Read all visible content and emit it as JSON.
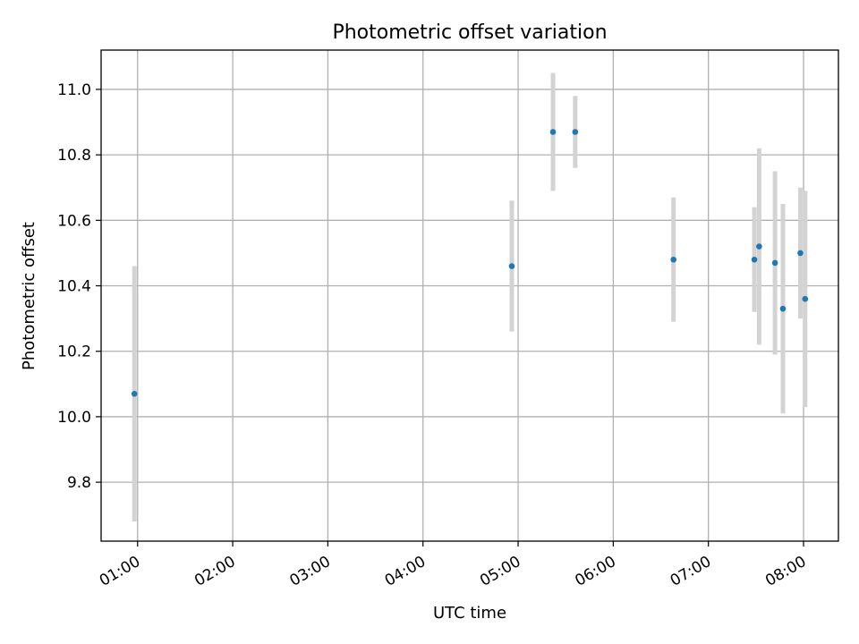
{
  "chart_data": {
    "type": "scatter",
    "title": "Photometric offset variation",
    "xlabel": "UTC time",
    "ylabel": "Photometric offset",
    "x_ticks": [
      "01:00",
      "02:00",
      "03:00",
      "04:00",
      "05:00",
      "06:00",
      "07:00",
      "08:00"
    ],
    "y_ticks": [
      "9.8",
      "10.0",
      "10.2",
      "10.4",
      "10.6",
      "10.8",
      "11.0"
    ],
    "xlim": [
      "00:37",
      "08:22"
    ],
    "ylim": [
      9.62,
      11.12
    ],
    "grid": true,
    "marker_color": "#1f77b4",
    "errorbar_color": "#d3d3d3",
    "series": [
      {
        "points": [
          {
            "x": "00:58",
            "y": 10.07,
            "err": 0.39
          },
          {
            "x": "04:56",
            "y": 10.46,
            "err": 0.2
          },
          {
            "x": "05:22",
            "y": 10.87,
            "err": 0.18
          },
          {
            "x": "05:36",
            "y": 10.87,
            "err": 0.11
          },
          {
            "x": "06:38",
            "y": 10.48,
            "err": 0.19
          },
          {
            "x": "07:29",
            "y": 10.48,
            "err": 0.16
          },
          {
            "x": "07:32",
            "y": 10.52,
            "err": 0.3
          },
          {
            "x": "07:42",
            "y": 10.47,
            "err": 0.28
          },
          {
            "x": "07:47",
            "y": 10.33,
            "err": 0.32
          },
          {
            "x": "07:58",
            "y": 10.5,
            "err": 0.2
          },
          {
            "x": "08:01",
            "y": 10.36,
            "err": 0.33
          }
        ]
      }
    ]
  }
}
